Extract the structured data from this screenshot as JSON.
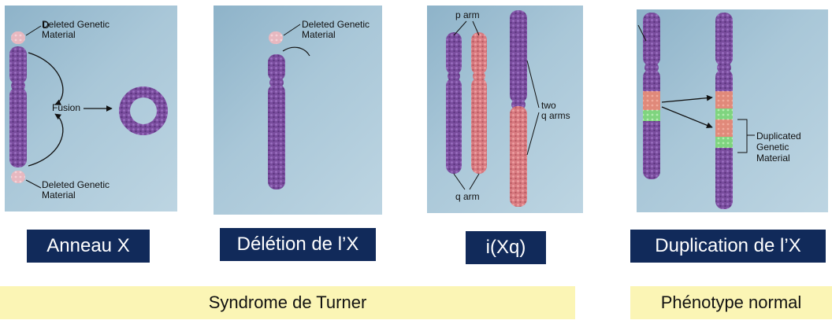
{
  "panels": {
    "ring": {
      "deleted_top": "Deleted Genetic\nMaterial",
      "fusion": "Fusion",
      "deleted_bottom": "Deleted Genetic\nMaterial",
      "caption": "Anneau X"
    },
    "deletion": {
      "deleted": "Deleted Genetic\nMaterial",
      "caption": "Délétion de l’X"
    },
    "isochromosome": {
      "p_arm": "p arm",
      "two_q_arms": "two\nq arms",
      "q_arm": "q arm",
      "caption": "i(Xq)"
    },
    "duplication": {
      "duplicated": "Duplicated\nGenetic\nMaterial",
      "caption": "Duplication de l’X"
    }
  },
  "bands": {
    "turner": "Syndrome de Turner",
    "normal": "Phénotype normal"
  },
  "colors": {
    "caption_bg": "#112a5a",
    "band_bg": "#fbf5b5",
    "chromosome_purple": "#7b4aa0",
    "chromosome_pink": "#d97b82",
    "deleted_fragment": "#e4b2bb",
    "duplicated_green": "#7bd17b",
    "duplicated_salmon": "#e08a7a"
  }
}
